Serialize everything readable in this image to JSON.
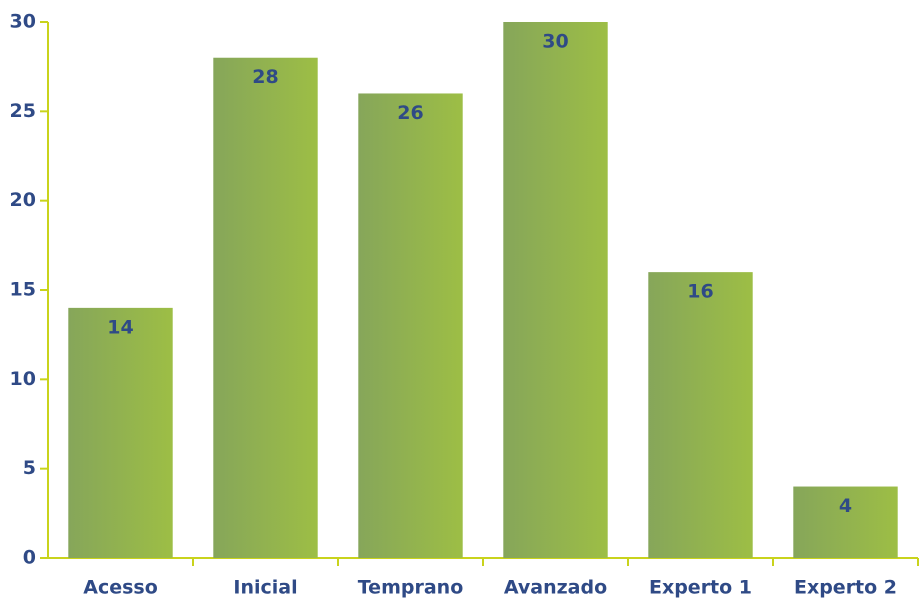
{
  "chart_data": {
    "type": "bar",
    "categories": [
      "Acesso",
      "Inicial",
      "Temprano",
      "Avanzado",
      "Experto 1",
      "Experto 2"
    ],
    "values": [
      14,
      28,
      26,
      30,
      16,
      4
    ],
    "color": "#94b44c",
    "ylim": [
      0,
      30
    ],
    "yticks": [
      0,
      5,
      10,
      15,
      20,
      25,
      30
    ],
    "grid": false
  }
}
